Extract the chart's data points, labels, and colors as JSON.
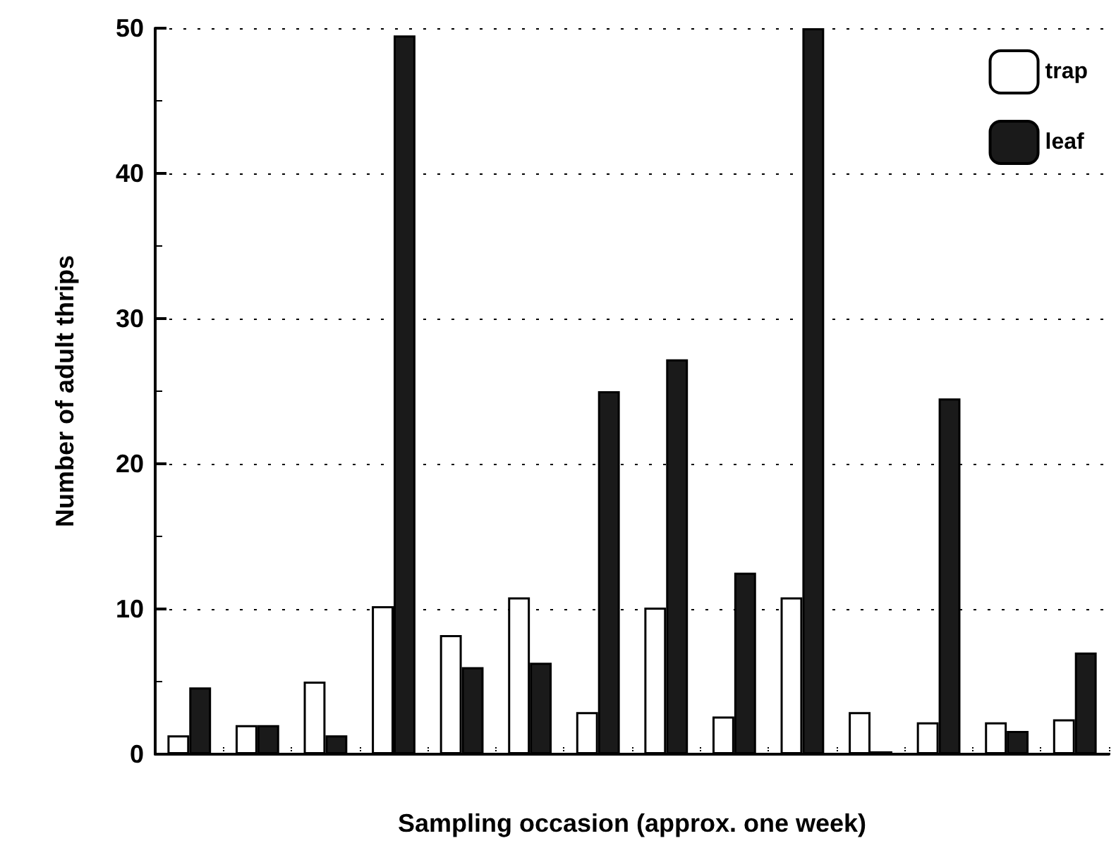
{
  "chart_data": {
    "type": "bar",
    "xlabel": "Sampling occasion (approx. one week)",
    "ylabel": "Number of adult thrips",
    "categories": [
      null,
      null,
      null,
      null,
      null,
      null,
      null,
      null,
      null,
      null,
      null,
      null,
      null,
      null
    ],
    "series": [
      {
        "name": "trap",
        "color": "#ffffff",
        "values": [
          1.3,
          2,
          5,
          10.2,
          8.2,
          10.8,
          2.9,
          10.1,
          2.6,
          10.8,
          2.9,
          2.2,
          2.2,
          2.4
        ]
      },
      {
        "name": "leaf",
        "color": "#1a1a1a",
        "values": [
          4.6,
          2,
          1.3,
          49.5,
          6,
          6.3,
          25,
          27.2,
          12.5,
          50,
          0.2,
          24.5,
          1.6,
          7
        ]
      }
    ],
    "ylim": [
      0,
      50
    ],
    "yticks": [
      0,
      10,
      20,
      30,
      40,
      50
    ],
    "grid": "y",
    "legend": "top right"
  }
}
